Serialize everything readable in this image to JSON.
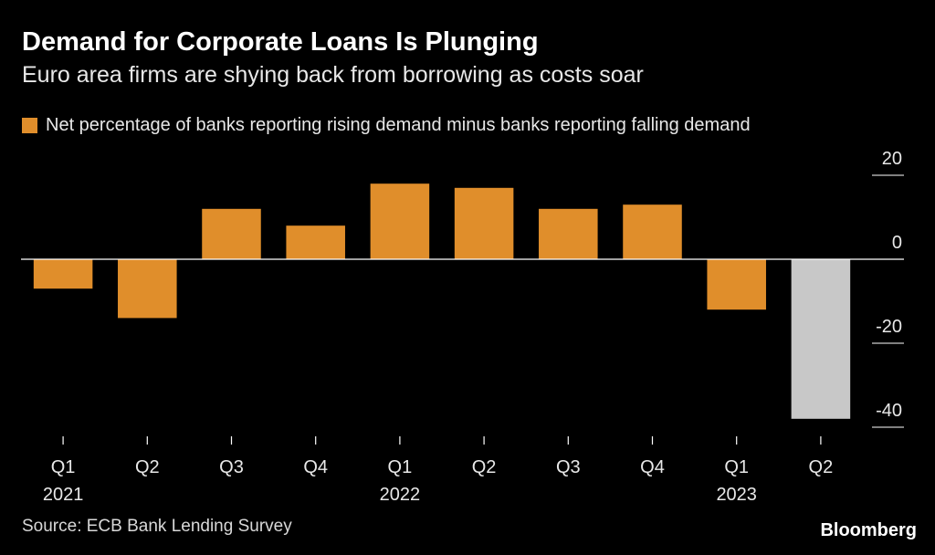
{
  "title": "Demand for Corporate Loans Is Plunging",
  "subtitle": "Euro area firms are shying back from borrowing as costs soar",
  "legend_label": "Net percentage of banks reporting rising demand minus banks reporting falling demand",
  "source": "Source: ECB Bank Lending Survey",
  "brand": "Bloomberg",
  "colors": {
    "bar": "#e08e2b",
    "highlight": "#c8c8c8",
    "background": "#000000",
    "axis": "#ffffff"
  },
  "chart_data": {
    "type": "bar",
    "categories": [
      "Q1 2021",
      "Q2 2021",
      "Q3 2021",
      "Q4 2021",
      "Q1 2022",
      "Q2 2022",
      "Q3 2022",
      "Q4 2022",
      "Q1 2023",
      "Q2 2023"
    ],
    "tick_labels": [
      "Q1",
      "Q2",
      "Q3",
      "Q4",
      "Q1",
      "Q2",
      "Q3",
      "Q4",
      "Q1",
      "Q2"
    ],
    "year_labels": [
      {
        "index": 0,
        "label": "2021"
      },
      {
        "index": 4,
        "label": "2022"
      },
      {
        "index": 8,
        "label": "2023"
      }
    ],
    "series": [
      {
        "name": "Net percentage of banks reporting rising demand minus banks reporting falling demand",
        "values": [
          -7,
          -14,
          12,
          8,
          18,
          17,
          12,
          13,
          -12,
          -38
        ]
      }
    ],
    "highlight_index": 9,
    "ylim": [
      -40,
      20
    ],
    "yticks": [
      20,
      0,
      -20,
      -40
    ],
    "y_axis_position": "right",
    "grid": false
  }
}
